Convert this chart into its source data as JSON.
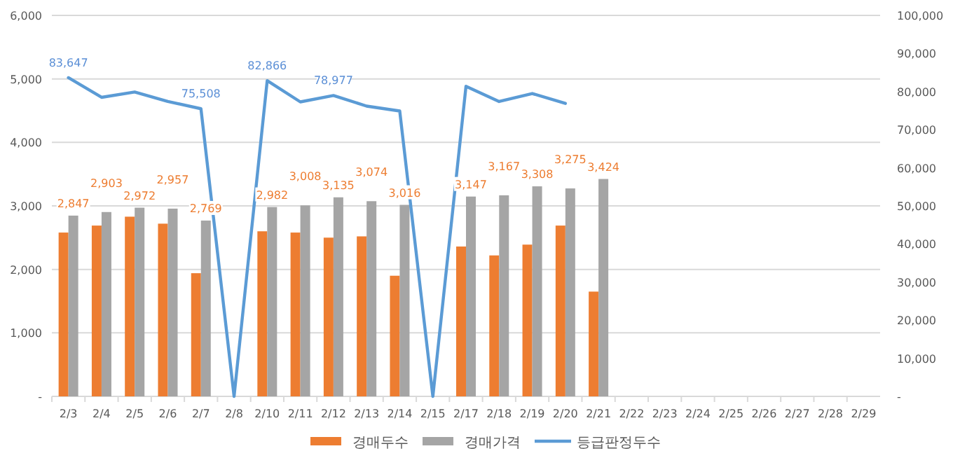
{
  "chart_data": {
    "type": "bar",
    "categories": [
      "2/3",
      "2/4",
      "2/5",
      "2/6",
      "2/7",
      "2/8",
      "2/10",
      "2/11",
      "2/12",
      "2/13",
      "2/14",
      "2/15",
      "2/17",
      "2/18",
      "2/19",
      "2/20",
      "2/21",
      "2/22",
      "2/23",
      "2/24",
      "2/25",
      "2/26",
      "2/27",
      "2/28",
      "2/29"
    ],
    "series": [
      {
        "name": "경매두수",
        "color": "#ed7d31",
        "values": [
          2580,
          2690,
          2830,
          2720,
          1940,
          null,
          2600,
          2580,
          2500,
          2520,
          1900,
          null,
          2360,
          2220,
          2390,
          2690,
          1650,
          null,
          null,
          null,
          null,
          null,
          null,
          null,
          null
        ]
      },
      {
        "name": "경매가격",
        "color": "#a5a5a5",
        "values": [
          2847,
          2903,
          2972,
          2957,
          2769,
          null,
          2982,
          3008,
          3135,
          3074,
          3016,
          null,
          3147,
          3167,
          3308,
          3275,
          3424,
          null,
          null,
          null,
          null,
          null,
          null,
          null,
          null
        ],
        "value_labels": [
          "2,847",
          "2,903",
          "2,972",
          "2,957",
          "2,769",
          null,
          "2,982",
          "3,008",
          "3,135",
          "3,074",
          "3,016",
          null,
          "3,147",
          "3,167",
          "3,308",
          "3,275",
          "3,424",
          null,
          null,
          null,
          null,
          null,
          null,
          null,
          null
        ]
      },
      {
        "name": "등급판정두수",
        "type": "line",
        "axis": "y2",
        "color": "#5b9bd5",
        "values": [
          83647,
          78500,
          79900,
          77400,
          75508,
          0,
          82866,
          77300,
          78977,
          76200,
          74900,
          0,
          81400,
          77400,
          79500,
          76900,
          null,
          null,
          null,
          null,
          null,
          null,
          null,
          null,
          null
        ],
        "value_labels": [
          "83,647",
          null,
          null,
          null,
          "75,508",
          null,
          "82,866",
          null,
          "78,977",
          null,
          null,
          null,
          null,
          null,
          null,
          null,
          null,
          null,
          null,
          null,
          null,
          null,
          null,
          null,
          null
        ]
      }
    ],
    "ylim": [
      0,
      6000
    ],
    "yticks": [
      {
        "value": 0,
        "label": "-"
      },
      {
        "value": 1000,
        "label": "1,000"
      },
      {
        "value": 2000,
        "label": "2,000"
      },
      {
        "value": 3000,
        "label": "3,000"
      },
      {
        "value": 4000,
        "label": "4,000"
      },
      {
        "value": 5000,
        "label": "5,000"
      },
      {
        "value": 6000,
        "label": "6,000"
      }
    ],
    "y2lim": [
      0,
      100000
    ],
    "y2ticks": [
      {
        "value": 0,
        "label": "-"
      },
      {
        "value": 10000,
        "label": "10,000"
      },
      {
        "value": 20000,
        "label": "20,000"
      },
      {
        "value": 30000,
        "label": "30,000"
      },
      {
        "value": 40000,
        "label": "40,000"
      },
      {
        "value": 50000,
        "label": "50,000"
      },
      {
        "value": 60000,
        "label": "60,000"
      },
      {
        "value": 70000,
        "label": "70,000"
      },
      {
        "value": 80000,
        "label": "80,000"
      },
      {
        "value": 90000,
        "label": "90,000"
      },
      {
        "value": 100000,
        "label": "100,000"
      }
    ],
    "grid": "y",
    "legend": "bottom"
  }
}
